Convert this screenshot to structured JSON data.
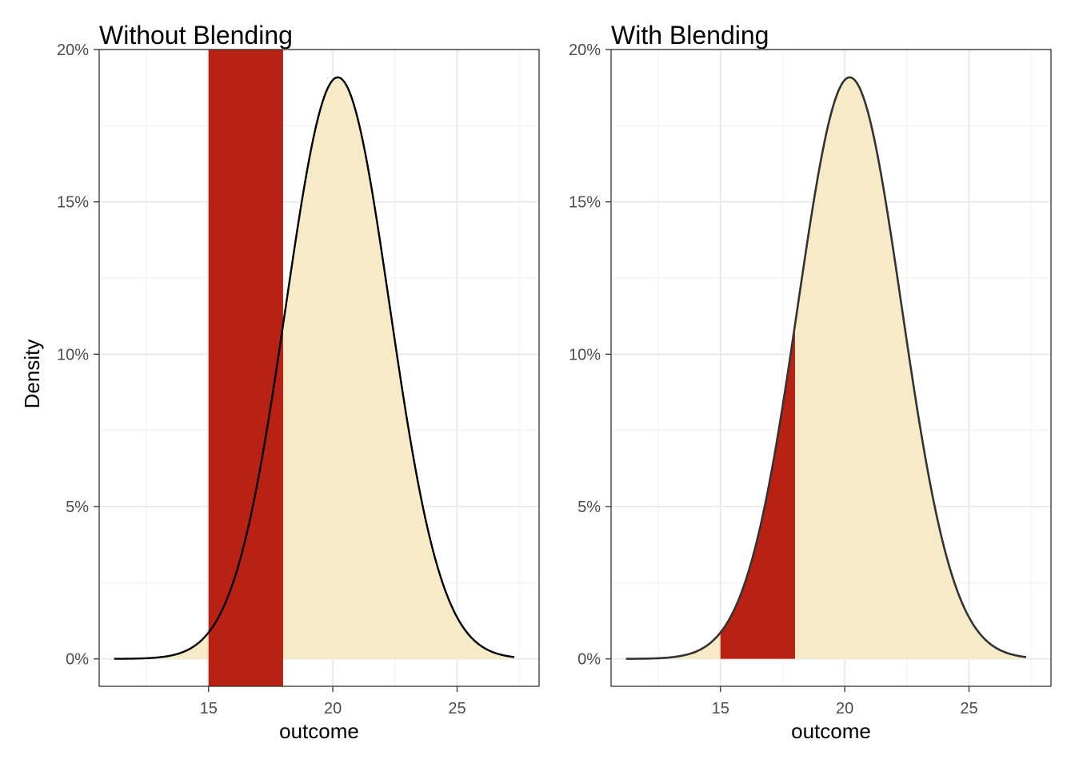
{
  "chart_data": [
    {
      "type": "area",
      "title": "Without Blending",
      "xlabel": "outcome",
      "ylabel": "Density",
      "xlim": [
        10.6,
        28.3
      ],
      "ylim": [
        -0.009,
        0.2
      ],
      "x_ticks": [
        15,
        20,
        25
      ],
      "y_ticks": [
        0,
        0.05,
        0.1,
        0.15,
        0.2
      ],
      "y_tick_labels": [
        "0%",
        "5%",
        "10%",
        "15%",
        "20%"
      ],
      "grid": true,
      "curve": {
        "distribution": "normal",
        "mean": 20.2,
        "sd": 2.09,
        "x_range": [
          11.2,
          27.3
        ],
        "fill": "#f7ebc7",
        "line": "#000000"
      },
      "highlight": {
        "x_range": [
          15,
          18
        ],
        "fill": "#b92212",
        "mode": "full-height rectangle"
      }
    },
    {
      "type": "area",
      "title": "With Blending",
      "xlabel": "outcome",
      "ylabel": "",
      "xlim": [
        10.6,
        28.3
      ],
      "ylim": [
        -0.009,
        0.2
      ],
      "x_ticks": [
        15,
        20,
        25
      ],
      "y_ticks": [
        0,
        0.05,
        0.1,
        0.15,
        0.2
      ],
      "y_tick_labels": [
        "0%",
        "5%",
        "10%",
        "15%",
        "20%"
      ],
      "grid": true,
      "curve": {
        "distribution": "normal",
        "mean": 20.2,
        "sd": 2.09,
        "x_range": [
          11.2,
          27.3
        ],
        "fill": "#f7ebc7",
        "line": "#333333"
      },
      "highlight": {
        "x_range": [
          15,
          18
        ],
        "fill": "#b92212",
        "mode": "clipped to area under curve"
      }
    }
  ]
}
